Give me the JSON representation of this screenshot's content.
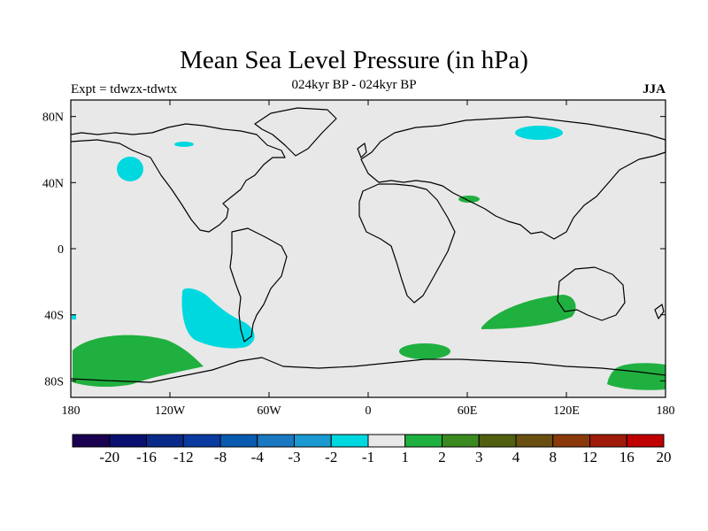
{
  "map": {
    "title": "Mean Sea Level Pressure (in hPa)",
    "subtitle": "024kyr BP - 024kyr BP",
    "experiment_label": "Expt = tdwzx-tdwtx",
    "season_label": "JJA",
    "lon_ticks": [
      "180",
      "120W",
      "60W",
      "0",
      "60E",
      "120E",
      "180"
    ],
    "lat_ticks": [
      "80N",
      "40N",
      "0",
      "40S",
      "80S"
    ],
    "colorbar": {
      "labels": [
        "-20",
        "-16",
        "-12",
        "-8",
        "-4",
        "-3",
        "-2",
        "-1",
        "1",
        "2",
        "3",
        "4",
        "8",
        "12",
        "16",
        "20"
      ],
      "colors": [
        "#1a0050",
        "#0a1070",
        "#0a2a8a",
        "#0a3aa0",
        "#0a5ab0",
        "#1a78c0",
        "#1a9ad0",
        "#00d8e0",
        "#e8e8e8",
        "#20b040",
        "#3a8a20",
        "#506010",
        "#6a5010",
        "#8a3a0a",
        "#a01a0a",
        "#c00000"
      ]
    },
    "colors": {
      "ocean": "#e8e8e8",
      "negative": "#00d8e0",
      "positive": "#20b040"
    }
  }
}
